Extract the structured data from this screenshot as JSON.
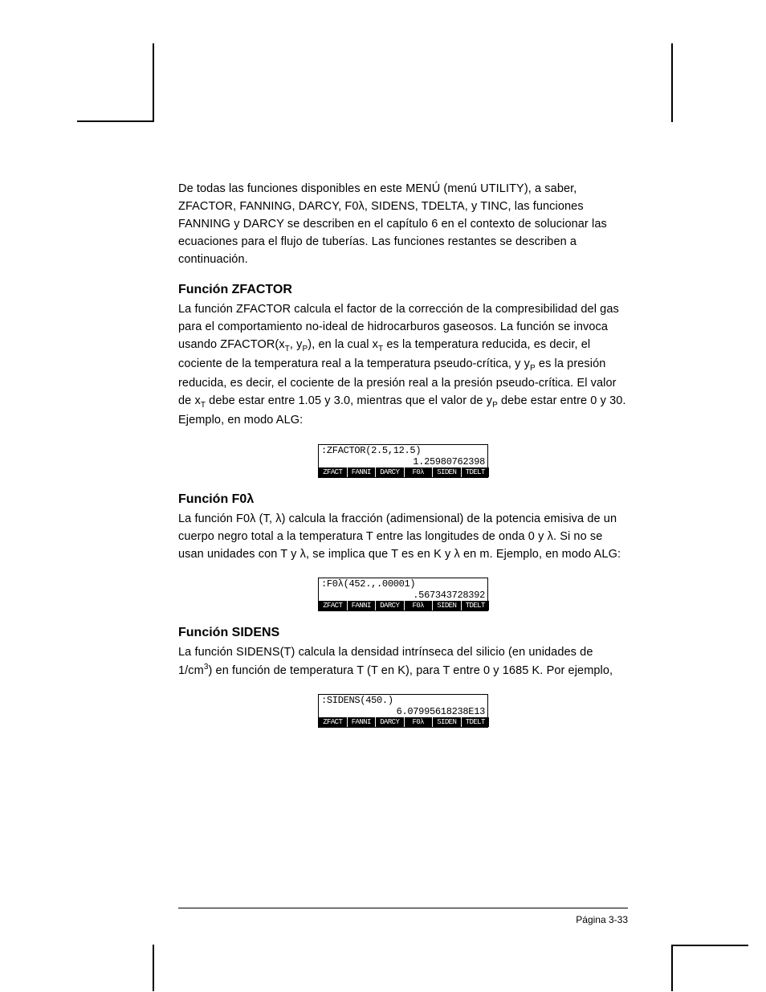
{
  "intro": {
    "text_parts": [
      "De todas las funciones disponibles en este MENÚ (menú UTILITY), a saber, ZFACTOR, FANNING, DARCY, F0",
      ", SIDENS, TDELTA, y TINC, las funciones FANNING y DARCY se describen en el capítulo 6 en el contexto de solucionar las ecuaciones para el flujo de tuberías.  Las funciones restantes se describen a continuación."
    ],
    "lambda": "λ"
  },
  "zfactor": {
    "heading": "Función ZFACTOR",
    "body_parts": {
      "p1": "La función ZFACTOR calcula el factor de la corrección de la compresibilidad del gas para el comportamiento no-ideal de hidrocarburos gaseosos. La función se invoca usando ZFACTOR(x",
      "sub1": "T",
      "p2": ", y",
      "sub2": "P",
      "p3": "), en la cual x",
      "sub3": "T",
      "p4": " es la temperatura reducida, es decir,  el cociente de la temperatura real a la temperatura pseudo-crítica, y y",
      "sub4": "P",
      "p5": " es la presión reducida, es decir, el cociente de la presión real a la presión pseudo-crítica.   El valor de x",
      "sub5": "T",
      "p6": " debe estar entre 1.05 y 3.0, mientras que el valor de y",
      "sub6": "P",
      "p7": " debe estar entre 0 y 30.   Ejemplo, en modo ALG:"
    },
    "calc": {
      "line1": ":ZFACTOR(2.5,12.5)",
      "line2": "1.25980762398",
      "menu": [
        "ZFACT",
        "FANNI",
        "DARCY",
        " F0λ ",
        "SIDEN",
        "TDELT"
      ]
    }
  },
  "f0l": {
    "heading_prefix": "Función F0",
    "heading_lambda": "λ",
    "body": {
      "p1": "La función F0",
      "l1": "λ",
      "p2": " (T, ",
      "l2": "λ",
      "p3": ") calcula la fracción (adimensional) de la potencia emisiva de un cuerpo negro  total a la temperatura T entre las longitudes de onda 0 y ",
      "l3": "λ",
      "p4": ".   Si no se usan unidades con T y ",
      "l4": "λ",
      "p5": ", se implica que T es en K y ",
      "l5": "λ",
      "p6": " en m.  Ejemplo, en modo ALG:"
    },
    "calc": {
      "line1": ":F0λ(452.,.00001)",
      "line2": ".567343728392",
      "menu": [
        "ZFACT",
        "FANNI",
        "DARCY",
        " F0λ ",
        "SIDEN",
        "TDELT"
      ]
    }
  },
  "sidens": {
    "heading": "Función SIDENS",
    "body": {
      "p1": "La función SIDENS(T) calcula la densidad intrínseca del silicio (en unidades de 1/cm",
      "sup": "3",
      "p2": ") en función de temperatura T (T en K), para T entre 0 y 1685 K.  Por ejemplo,"
    },
    "calc": {
      "line1": ":SIDENS(450.)",
      "line2": "6.07995618238E13",
      "menu": [
        "ZFACT",
        "FANNI",
        "DARCY",
        " F0λ ",
        "SIDEN",
        "TDELT"
      ]
    }
  },
  "footer": "Página 3-33"
}
